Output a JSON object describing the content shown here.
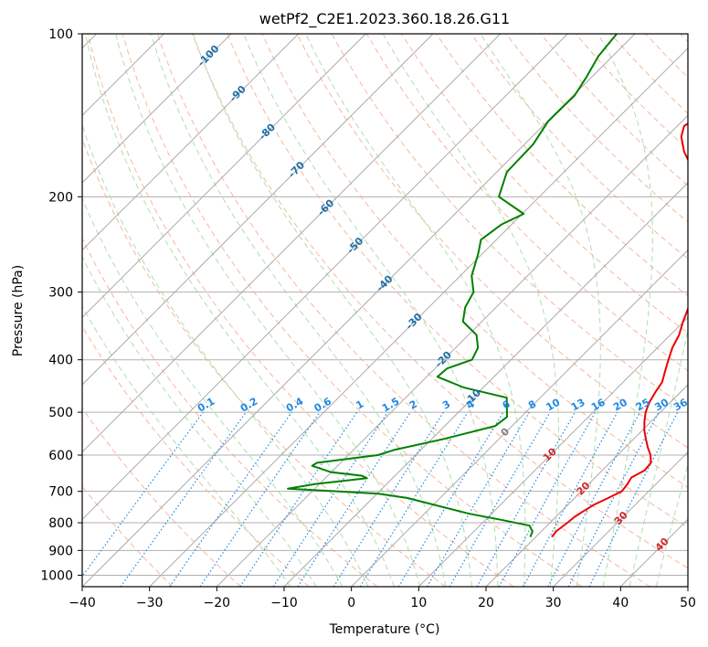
{
  "chart_data": {
    "type": "line",
    "title": "wetPf2_C2E1.2023.360.18.26.G11",
    "xlabel": "Temperature (°C)",
    "ylabel": "Pressure (hPa)",
    "xlim": [
      -40,
      50
    ],
    "ylim": [
      1050,
      100
    ],
    "y_scale": "log",
    "grid": true,
    "x_ticks": [
      -40,
      -30,
      -20,
      -10,
      0,
      10,
      20,
      30,
      40,
      50
    ],
    "y_ticks": [
      1000,
      900,
      800,
      700,
      600,
      500,
      400,
      300,
      200,
      100
    ],
    "colors": {
      "temperature": "#ee0000",
      "dewpoint": "#008000",
      "isotherm": "#aaaaaa",
      "dry_adiabat": "#f4a582",
      "moist_adiabat": "#a6d9a6",
      "mixing_ratio": "#1e88e5",
      "isotherm_label_neg": "#1f6fa8",
      "isotherm_label_pos": "#d62728",
      "isotherm_label_zero": "#808080"
    },
    "series": [
      {
        "key": "temperature",
        "points": [
          [
            22.4,
            850
          ],
          [
            22.2,
            830
          ],
          [
            22.6,
            800
          ],
          [
            22.8,
            780
          ],
          [
            23.3,
            760
          ],
          [
            23.9,
            740
          ],
          [
            25.0,
            720
          ],
          [
            26.0,
            700
          ],
          [
            25.8,
            680
          ],
          [
            25.4,
            660
          ],
          [
            26.3,
            640
          ],
          [
            26.1,
            620
          ],
          [
            24.9,
            600
          ],
          [
            23.3,
            580
          ],
          [
            21.8,
            560
          ],
          [
            20.3,
            540
          ],
          [
            19.0,
            520
          ],
          [
            17.8,
            500
          ],
          [
            16.9,
            480
          ],
          [
            16.3,
            460
          ],
          [
            15.8,
            440
          ],
          [
            14.6,
            420
          ],
          [
            13.4,
            400
          ],
          [
            12.2,
            380
          ],
          [
            11.3,
            360
          ],
          [
            9.9,
            340
          ],
          [
            8.6,
            320
          ],
          [
            7.0,
            300
          ],
          [
            5.0,
            280
          ],
          [
            3.3,
            260
          ],
          [
            1.5,
            240
          ],
          [
            -2.0,
            220
          ],
          [
            -6.2,
            200
          ],
          [
            -10.7,
            180
          ],
          [
            -15.2,
            165
          ],
          [
            -17.8,
            155
          ],
          [
            -19.0,
            148
          ],
          [
            -17.8,
            140
          ],
          [
            -15.5,
            130
          ],
          [
            -13.8,
            120
          ],
          [
            -10.9,
            110
          ],
          [
            -8.6,
            100
          ]
        ]
      },
      {
        "key": "dewpoint",
        "points": [
          [
            19.2,
            850
          ],
          [
            18.7,
            830
          ],
          [
            17.4,
            810
          ],
          [
            12.3,
            790
          ],
          [
            6.7,
            770
          ],
          [
            -4.9,
            720
          ],
          [
            -9.8,
            707
          ],
          [
            -24.0,
            692
          ],
          [
            -20.5,
            678
          ],
          [
            -13.8,
            662
          ],
          [
            -14.9,
            655
          ],
          [
            -20.1,
            645
          ],
          [
            -23.8,
            628
          ],
          [
            -23.5,
            620
          ],
          [
            -15.6,
            600
          ],
          [
            -14.0,
            587
          ],
          [
            -8.2,
            560
          ],
          [
            -2.5,
            530
          ],
          [
            -2.1,
            510
          ],
          [
            -5.0,
            470
          ],
          [
            -12.9,
            450
          ],
          [
            -18.4,
            430
          ],
          [
            -18.2,
            415
          ],
          [
            -15.8,
            400
          ],
          [
            -16.7,
            380
          ],
          [
            -18.8,
            360
          ],
          [
            -22.8,
            340
          ],
          [
            -24.6,
            320
          ],
          [
            -25.6,
            300
          ],
          [
            -28.3,
            280
          ],
          [
            -30.6,
            255
          ],
          [
            -32.3,
            240
          ],
          [
            -31.5,
            225
          ],
          [
            -29.8,
            215
          ],
          [
            -36.0,
            200
          ],
          [
            -38.5,
            180
          ],
          [
            -38.7,
            160
          ],
          [
            -39.9,
            145
          ],
          [
            -39.8,
            130
          ],
          [
            -40.8,
            120
          ],
          [
            -42.1,
            110
          ],
          [
            -42.7,
            100
          ]
        ]
      }
    ],
    "isotherm_labels": [
      "-100",
      "-90",
      "-80",
      "-70",
      "-60",
      "-50",
      "-40",
      "-30",
      "-20",
      "-10",
      "0",
      "10",
      "20",
      "30",
      "40"
    ],
    "mixing_ratio_labels": [
      "0.1",
      "0.2",
      "0.4",
      "0.6",
      "1",
      "1.5",
      "2",
      "3",
      "4",
      "6",
      "8",
      "10",
      "13",
      "16",
      "20",
      "25",
      "30",
      "36"
    ]
  }
}
